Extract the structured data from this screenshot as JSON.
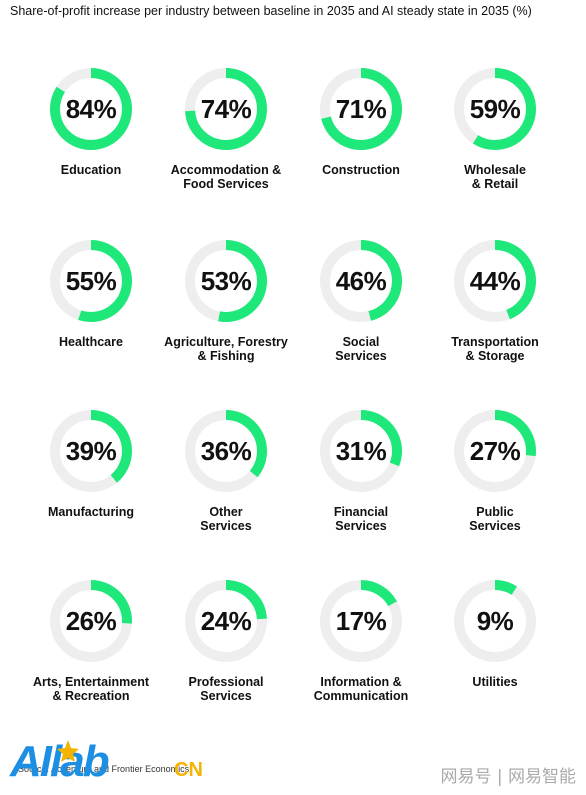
{
  "title": "Share-of-profit increase per industry between baseline in 2035 and AI steady state in 2035 (%)",
  "colors": {
    "ring_fill": "#1ee87a",
    "ring_track": "#eeeeee",
    "logo_blue": "#1c8fe3",
    "logo_gold": "#f4b400"
  },
  "chart_data": {
    "type": "donut",
    "title": "Share-of-profit increase per industry between baseline in 2035 and AI steady state in 2035 (%)",
    "unit": "%",
    "categories": [
      "Education",
      "Accommodation & Food Services",
      "Construction",
      "Wholesale & Retail",
      "Healthcare",
      "Agriculture, Forestry & Fishing",
      "Social Services",
      "Transportation & Storage",
      "Manufacturing",
      "Other Services",
      "Financial Services",
      "Public Services",
      "Arts, Entertainment & Recreation",
      "Professional Services",
      "Information & Communication",
      "Utilities"
    ],
    "values": [
      84,
      74,
      71,
      59,
      55,
      53,
      46,
      44,
      39,
      36,
      31,
      27,
      26,
      24,
      17,
      9
    ],
    "items": [
      {
        "value_label": "84%",
        "label_lines": [
          "Education"
        ]
      },
      {
        "value_label": "74%",
        "label_lines": [
          "Accommodation &",
          "Food Services"
        ]
      },
      {
        "value_label": "71%",
        "label_lines": [
          "Construction"
        ]
      },
      {
        "value_label": "59%",
        "label_lines": [
          "Wholesale",
          "& Retail"
        ]
      },
      {
        "value_label": "55%",
        "label_lines": [
          "Healthcare"
        ]
      },
      {
        "value_label": "53%",
        "label_lines": [
          "Agriculture, Forestry",
          "& Fishing"
        ]
      },
      {
        "value_label": "46%",
        "label_lines": [
          "Social",
          "Services"
        ]
      },
      {
        "value_label": "44%",
        "label_lines": [
          "Transportation",
          "& Storage"
        ]
      },
      {
        "value_label": "39%",
        "label_lines": [
          "Manufacturing"
        ]
      },
      {
        "value_label": "36%",
        "label_lines": [
          "Other",
          "Services"
        ]
      },
      {
        "value_label": "31%",
        "label_lines": [
          "Financial",
          "Services"
        ]
      },
      {
        "value_label": "27%",
        "label_lines": [
          "Public",
          "Services"
        ]
      },
      {
        "value_label": "26%",
        "label_lines": [
          "Arts, Entertainment",
          "& Recreation"
        ]
      },
      {
        "value_label": "24%",
        "label_lines": [
          "Professional",
          "Services"
        ]
      },
      {
        "value_label": "17%",
        "label_lines": [
          "Information &",
          "Communication"
        ]
      },
      {
        "value_label": "9%",
        "label_lines": [
          "Utilities"
        ]
      }
    ]
  },
  "source_text": "Source: Accenture and Frontier Economics",
  "logo": {
    "text_main": "AIlab",
    "text_suffix": "CN"
  },
  "watermark": "网易号 | 网易智能"
}
